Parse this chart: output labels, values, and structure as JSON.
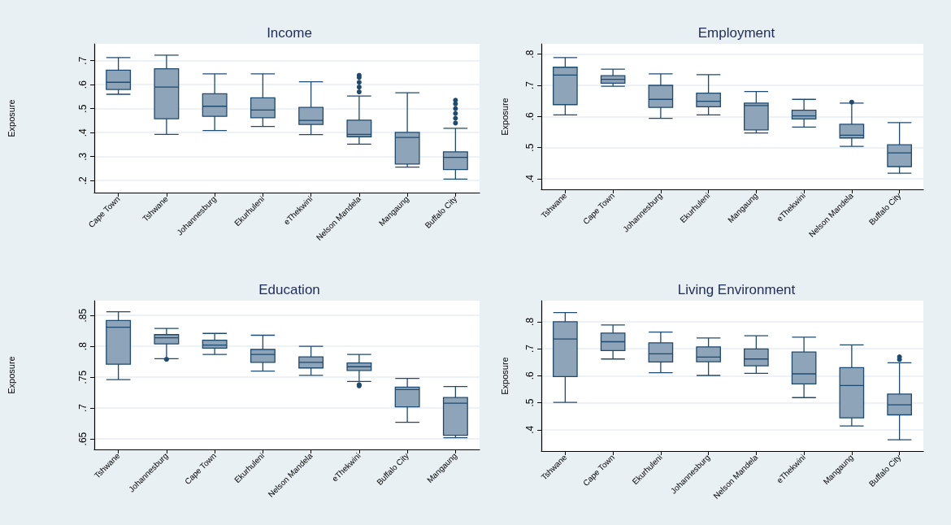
{
  "chart_data": [
    {
      "type": "box",
      "title": "Income",
      "ylabel": "Exposure",
      "grid": "y",
      "categories": [
        "Cape Town",
        "Tshwane",
        "Johannesburg",
        "Ekurhuleni",
        "eThekwini",
        "Nelson Mandela",
        "Mangaung",
        "Buffalo City"
      ],
      "ylim": [
        0.15,
        0.77
      ],
      "yticks": [
        {
          "value": 0.2,
          "label": ".2"
        },
        {
          "value": 0.3,
          "label": ".3"
        },
        {
          "value": 0.4,
          "label": ".4"
        },
        {
          "value": 0.5,
          "label": ".5"
        },
        {
          "value": 0.6,
          "label": ".6"
        },
        {
          "value": 0.7,
          "label": ".7"
        }
      ],
      "series": [
        {
          "color": "#8ea4b9",
          "boxes": [
            {
              "low": 0.56,
              "q1": 0.58,
              "median": 0.61,
              "q3": 0.66,
              "high": 0.713
            },
            {
              "low": 0.393,
              "q1": 0.458,
              "median": 0.59,
              "q3": 0.666,
              "high": 0.723
            },
            {
              "low": 0.409,
              "q1": 0.468,
              "median": 0.51,
              "q3": 0.562,
              "high": 0.645
            },
            {
              "low": 0.426,
              "q1": 0.462,
              "median": 0.494,
              "q3": 0.545,
              "high": 0.645
            },
            {
              "low": 0.392,
              "q1": 0.434,
              "median": 0.451,
              "q3": 0.505,
              "high": 0.612
            },
            {
              "low": 0.352,
              "q1": 0.383,
              "median": 0.393,
              "q3": 0.452,
              "high": 0.553,
              "outliers": [
                0.57,
                0.59,
                0.61,
                0.63,
                0.639
              ]
            },
            {
              "low": 0.256,
              "q1": 0.269,
              "median": 0.38,
              "q3": 0.401,
              "high": 0.566
            },
            {
              "low": 0.206,
              "q1": 0.246,
              "median": 0.297,
              "q3": 0.32,
              "high": 0.418,
              "outliers": [
                0.44,
                0.46,
                0.48,
                0.5,
                0.52,
                0.535
              ]
            }
          ]
        }
      ]
    },
    {
      "type": "box",
      "title": "Employment",
      "ylabel": "Exposure",
      "grid": "y",
      "categories": [
        "Tshwane",
        "Cape Town",
        "Johannesburg",
        "Ekurhuleni",
        "Mangaung",
        "eThekwini",
        "Nelson Mandela",
        "Buffalo City"
      ],
      "ylim": [
        0.366,
        0.833
      ],
      "yticks": [
        {
          "value": 0.4,
          "label": ".4"
        },
        {
          "value": 0.5,
          "label": ".5"
        },
        {
          "value": 0.6,
          "label": ".6"
        },
        {
          "value": 0.7,
          "label": ".7"
        },
        {
          "value": 0.8,
          "label": ".8"
        }
      ],
      "series": [
        {
          "color": "#8ea4b9",
          "boxes": [
            {
              "low": 0.605,
              "q1": 0.638,
              "median": 0.733,
              "q3": 0.758,
              "high": 0.789
            },
            {
              "low": 0.697,
              "q1": 0.707,
              "median": 0.719,
              "q3": 0.731,
              "high": 0.752
            },
            {
              "low": 0.594,
              "q1": 0.629,
              "median": 0.655,
              "q3": 0.7,
              "high": 0.737
            },
            {
              "low": 0.605,
              "q1": 0.631,
              "median": 0.649,
              "q3": 0.675,
              "high": 0.734
            },
            {
              "low": 0.547,
              "q1": 0.557,
              "median": 0.635,
              "q3": 0.643,
              "high": 0.68
            },
            {
              "low": 0.566,
              "q1": 0.592,
              "median": 0.602,
              "q3": 0.62,
              "high": 0.655
            },
            {
              "low": 0.504,
              "q1": 0.531,
              "median": 0.54,
              "q3": 0.575,
              "high": 0.643,
              "outliers": [
                0.646
              ]
            },
            {
              "low": 0.418,
              "q1": 0.439,
              "median": 0.483,
              "q3": 0.509,
              "high": 0.58
            }
          ]
        }
      ]
    },
    {
      "type": "box",
      "title": "Education",
      "ylabel": "Exposure",
      "grid": "y",
      "categories": [
        "Tshwane",
        "Johannesburg",
        "Cape Town",
        "Ekurhuleni",
        "Nelson Mandela",
        "eThekwini",
        "Buffalo City",
        "Mangaung"
      ],
      "ylim": [
        0.633,
        0.874
      ],
      "yticks": [
        {
          "value": 0.65,
          "label": ".65"
        },
        {
          "value": 0.7,
          "label": ".7"
        },
        {
          "value": 0.75,
          "label": ".75"
        },
        {
          "value": 0.8,
          "label": ".8"
        },
        {
          "value": 0.85,
          "label": ".85"
        }
      ],
      "series": [
        {
          "color": "#8ea4b9",
          "boxes": [
            {
              "low": 0.746,
              "q1": 0.771,
              "median": 0.831,
              "q3": 0.842,
              "high": 0.856
            },
            {
              "low": 0.78,
              "q1": 0.804,
              "median": 0.814,
              "q3": 0.819,
              "high": 0.829,
              "outliers": [
                0.779
              ]
            },
            {
              "low": 0.787,
              "q1": 0.797,
              "median": 0.802,
              "q3": 0.81,
              "high": 0.821
            },
            {
              "low": 0.76,
              "q1": 0.774,
              "median": 0.787,
              "q3": 0.795,
              "high": 0.818
            },
            {
              "low": 0.753,
              "q1": 0.765,
              "median": 0.774,
              "q3": 0.783,
              "high": 0.8
            },
            {
              "low": 0.743,
              "q1": 0.761,
              "median": 0.767,
              "q3": 0.773,
              "high": 0.787,
              "outliers": [
                0.736,
                0.738
              ]
            },
            {
              "low": 0.677,
              "q1": 0.702,
              "median": 0.73,
              "q3": 0.734,
              "high": 0.748
            },
            {
              "low": 0.652,
              "q1": 0.656,
              "median": 0.708,
              "q3": 0.717,
              "high": 0.735
            }
          ]
        }
      ]
    },
    {
      "type": "box",
      "title": "Living Environment",
      "ylabel": "Exposure",
      "grid": "y",
      "categories": [
        "Tshwane",
        "Cape Town",
        "Ekurhuleni",
        "Johannesburg",
        "Nelson Mandela",
        "eThekwini",
        "Mangaung",
        "Buffalo City"
      ],
      "ylim": [
        0.321,
        0.878
      ],
      "yticks": [
        {
          "value": 0.4,
          "label": ".4"
        },
        {
          "value": 0.5,
          "label": ".5"
        },
        {
          "value": 0.6,
          "label": ".6"
        },
        {
          "value": 0.7,
          "label": ".7"
        },
        {
          "value": 0.8,
          "label": ".8"
        }
      ],
      "series": [
        {
          "color": "#8ea4b9",
          "boxes": [
            {
              "low": 0.501,
              "q1": 0.597,
              "median": 0.736,
              "q3": 0.8,
              "high": 0.834
            },
            {
              "low": 0.662,
              "q1": 0.693,
              "median": 0.726,
              "q3": 0.758,
              "high": 0.788
            },
            {
              "low": 0.611,
              "q1": 0.651,
              "median": 0.681,
              "q3": 0.722,
              "high": 0.762
            },
            {
              "low": 0.601,
              "q1": 0.652,
              "median": 0.669,
              "q3": 0.707,
              "high": 0.74
            },
            {
              "low": 0.609,
              "q1": 0.637,
              "median": 0.662,
              "q3": 0.699,
              "high": 0.748
            },
            {
              "low": 0.519,
              "q1": 0.57,
              "median": 0.607,
              "q3": 0.688,
              "high": 0.743
            },
            {
              "low": 0.414,
              "q1": 0.444,
              "median": 0.564,
              "q3": 0.63,
              "high": 0.714
            },
            {
              "low": 0.363,
              "q1": 0.455,
              "median": 0.492,
              "q3": 0.532,
              "high": 0.648,
              "outliers": [
                0.66,
                0.67
              ]
            }
          ]
        }
      ]
    }
  ]
}
